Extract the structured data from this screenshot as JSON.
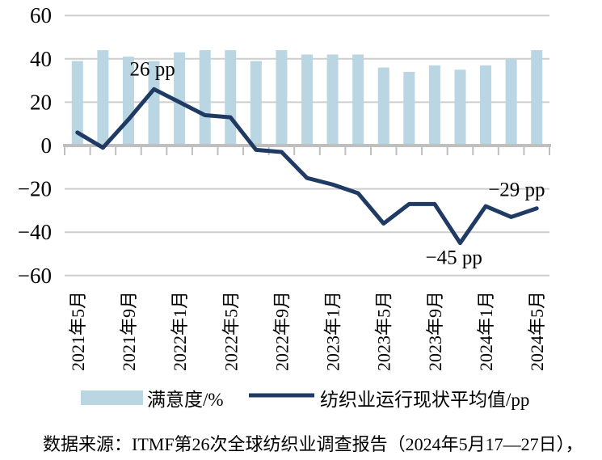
{
  "chart_data": {
    "type": "combo_bar_line",
    "title": "",
    "n_categories": 19,
    "x_tick_labels": [
      "2021年5月",
      "2021年9月",
      "2022年1月",
      "2022年5月",
      "2022年9月",
      "2023年1月",
      "2023年5月",
      "2023年9月",
      "2024年1月",
      "2024年5月"
    ],
    "x_tick_positions": [
      0,
      2,
      4,
      6,
      8,
      10,
      12,
      14,
      16,
      18
    ],
    "ylim": [
      -60,
      60
    ],
    "y_ticks": [
      60,
      40,
      20,
      0,
      -20,
      -40,
      -60
    ],
    "y_tick_labels": [
      "60",
      "40",
      "20",
      "0",
      "−20",
      "−40",
      "−60"
    ],
    "grid": true,
    "legend_position": "bottom",
    "series": [
      {
        "name": "满意度/%",
        "type": "bar",
        "color": "#b9d6e2",
        "values": [
          39,
          44,
          41,
          39,
          43,
          44,
          44,
          39,
          44,
          42,
          42,
          42,
          36,
          34,
          37,
          35,
          37,
          40,
          44
        ]
      },
      {
        "name": "纺织业运行现状平均值/pp",
        "type": "line",
        "color": "#1f3a63",
        "values": [
          6,
          -1,
          12,
          26,
          20,
          14,
          13,
          -2,
          -3,
          -15,
          -18,
          -22,
          -36,
          -27,
          -27,
          -45,
          -28,
          -33,
          -29
        ]
      }
    ],
    "annotations": [
      {
        "text": "26 pp",
        "x_index": 3,
        "value": 26,
        "placement": "above"
      },
      {
        "text": "−45 pp",
        "x_index": 15,
        "value": -45,
        "placement": "below"
      },
      {
        "text": "−29 pp",
        "x_index": 18,
        "value": -29,
        "placement": "above-left"
      }
    ]
  },
  "source_note": "数据来源：ITMF第26次全球纺织业调查报告（2024年5月17—27日），",
  "colors": {
    "bar": "#b9d6e2",
    "line": "#1f3a63",
    "gridline": "#cdcdcd",
    "axis": "#bfbfbf",
    "text": "#000000",
    "background": "#ffffff"
  }
}
